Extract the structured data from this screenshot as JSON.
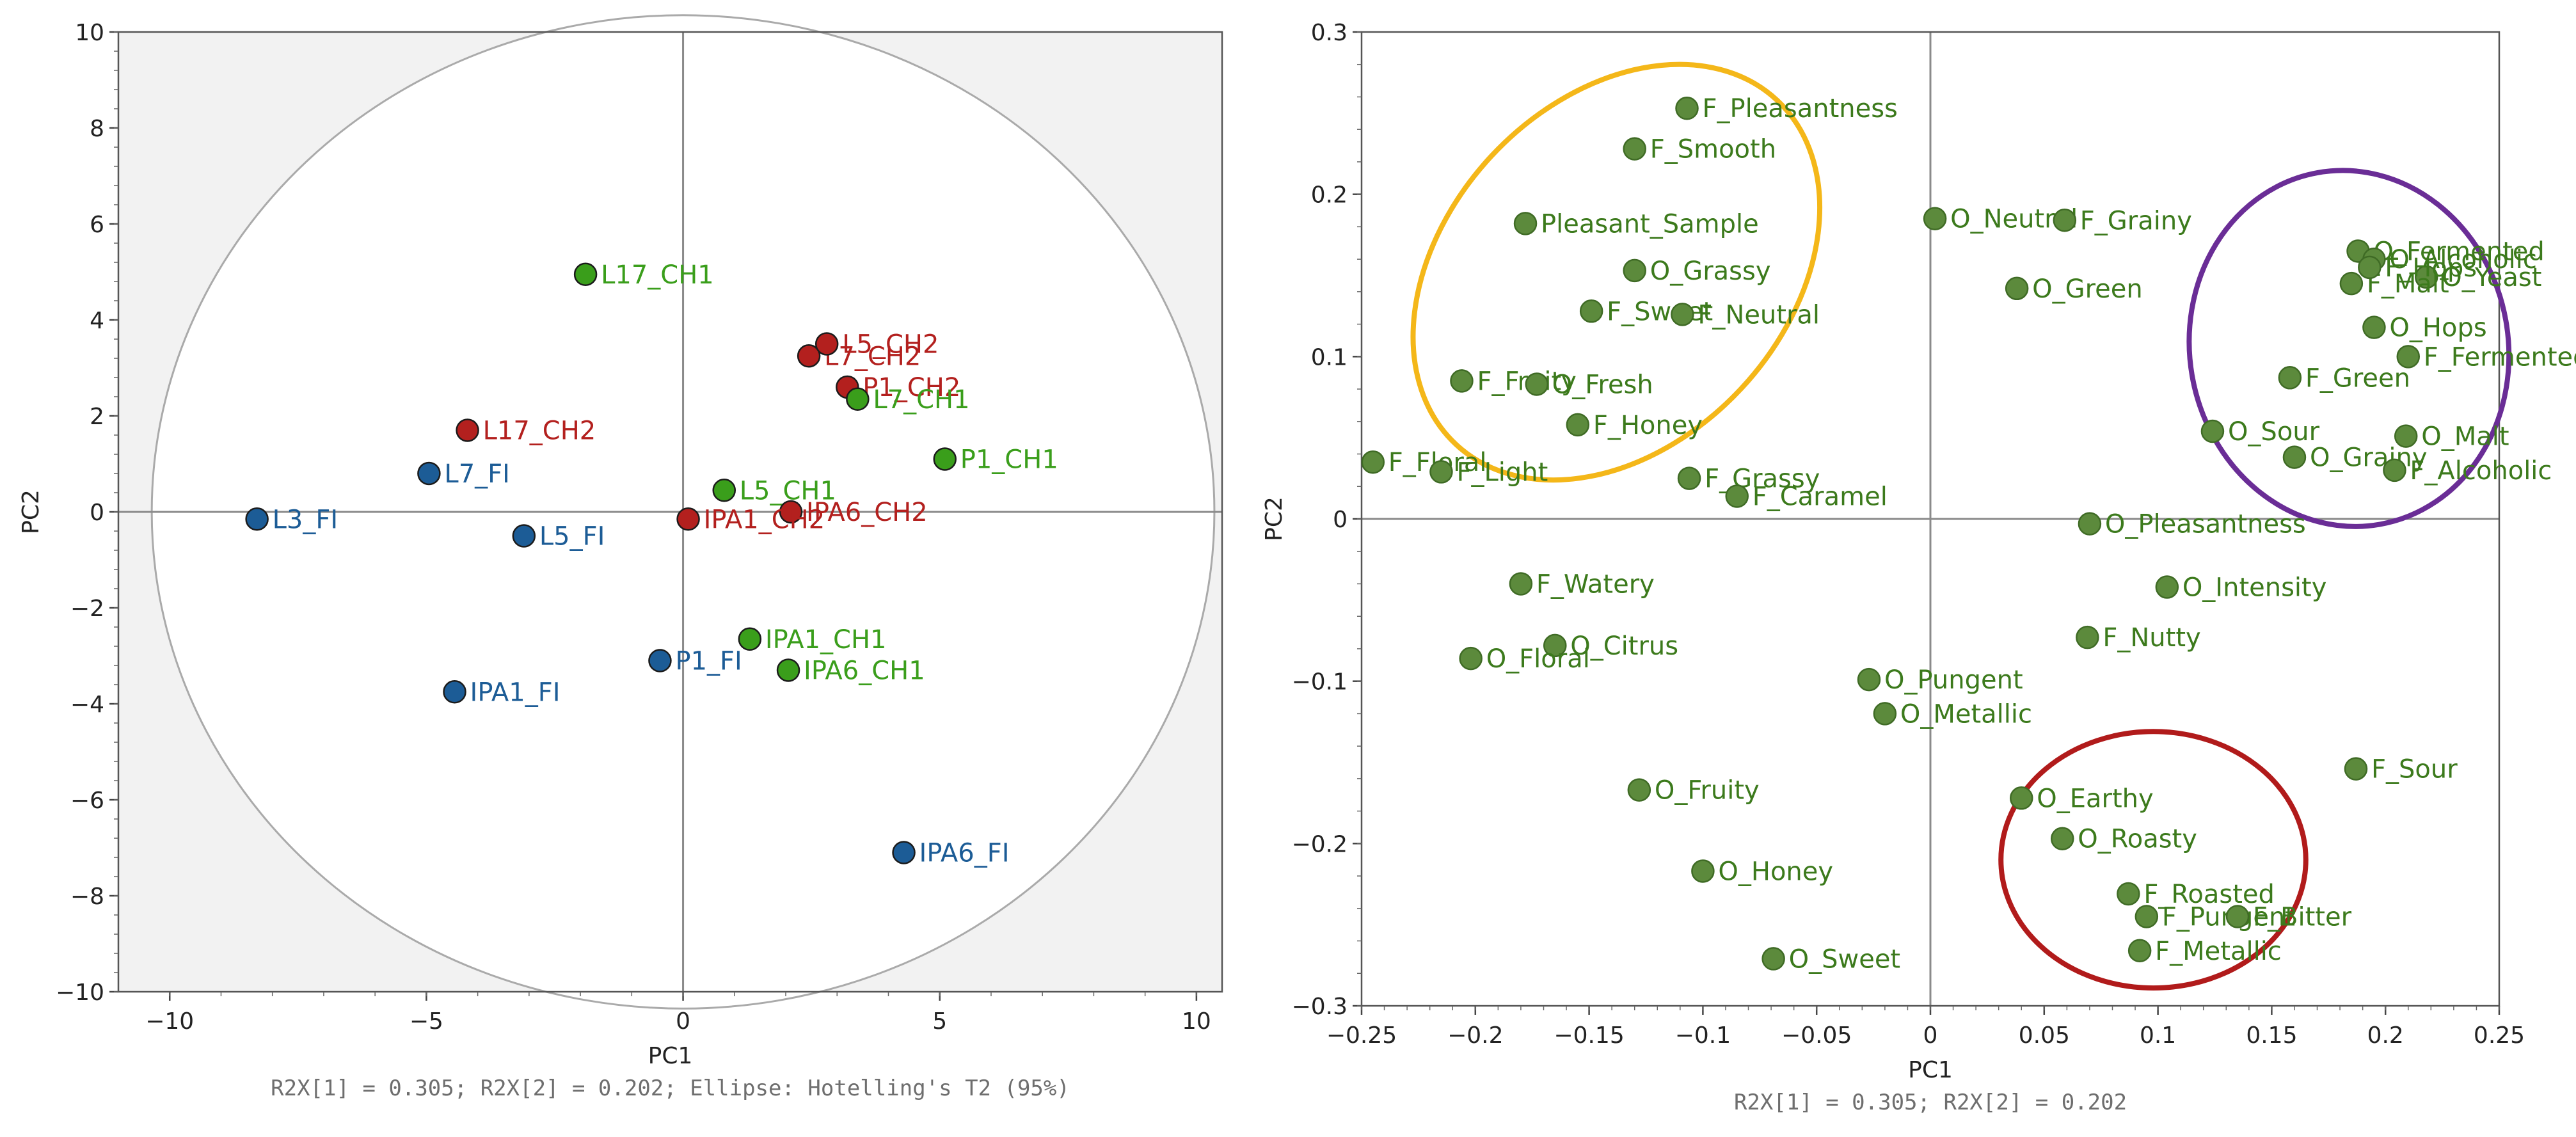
{
  "colors": {
    "chain1": "#3a9e1b",
    "chain2": "#b3201e",
    "fi": "#1c5c96",
    "loadings": "#5c8a3c",
    "loadings_edge": "#3f6b25",
    "loadings_text": "#3c7a1c",
    "ellipse_yellow": "#f4b719",
    "ellipse_purple": "#6a2d96",
    "ellipse_red": "#b11b1b"
  },
  "chart_data": [
    {
      "type": "scatter",
      "xlabel": "PC1",
      "ylabel": "PC2",
      "xlim": [
        -11,
        10.5
      ],
      "ylim": [
        -10,
        10
      ],
      "xticks": [
        -10,
        -5,
        0,
        5,
        10
      ],
      "yticks": [
        -10,
        -8,
        -6,
        -4,
        -2,
        0,
        2,
        4,
        6,
        8,
        10
      ],
      "xtick_labels": [
        "−10",
        "−5",
        "0",
        "5",
        "10"
      ],
      "ytick_labels": [
        "−10",
        "−8",
        "−6",
        "−4",
        "−2",
        "0",
        "2",
        "4",
        "6",
        "8",
        "10"
      ],
      "caption": "R2X[1] = 0.305; R2X[2] = 0.202; Ellipse: Hotelling's T2 (95%)",
      "ellipse": {
        "cx": 0,
        "cy": 0,
        "rx": 10.35,
        "ry": 10.35
      },
      "points": [
        {
          "label": "L17_CH1",
          "x": -1.9,
          "y": 4.95,
          "group": "chain1"
        },
        {
          "label": "L7_CH2",
          "x": 2.45,
          "y": 3.25,
          "group": "chain2"
        },
        {
          "label": "L5_CH2",
          "x": 2.8,
          "y": 3.5,
          "group": "chain2"
        },
        {
          "label": "P1_CH2",
          "x": 3.2,
          "y": 2.6,
          "group": "chain2"
        },
        {
          "label": "L7_CH1",
          "x": 3.4,
          "y": 2.35,
          "group": "chain1"
        },
        {
          "label": "L17_CH2",
          "x": -4.2,
          "y": 1.7,
          "group": "chain2"
        },
        {
          "label": "P1_CH1",
          "x": 5.1,
          "y": 1.1,
          "group": "chain1"
        },
        {
          "label": "L7_FI",
          "x": -4.95,
          "y": 0.8,
          "group": "fi"
        },
        {
          "label": "L5_CH1",
          "x": 0.8,
          "y": 0.45,
          "group": "chain1"
        },
        {
          "label": "L3_FI",
          "x": -8.3,
          "y": -0.15,
          "group": "fi"
        },
        {
          "label": "L5_FI",
          "x": -3.1,
          "y": -0.5,
          "group": "fi"
        },
        {
          "label": "IPA6_CH2",
          "x": 2.1,
          "y": 0.0,
          "group": "chain2"
        },
        {
          "label": "IPA1_CH2",
          "x": 0.1,
          "y": -0.15,
          "group": "chain2"
        },
        {
          "label": "IPA1_CH1",
          "x": 1.3,
          "y": -2.65,
          "group": "chain1"
        },
        {
          "label": "P1_FI",
          "x": -0.45,
          "y": -3.1,
          "group": "fi"
        },
        {
          "label": "IPA6_CH1",
          "x": 2.05,
          "y": -3.3,
          "group": "chain1"
        },
        {
          "label": "IPA1_FI",
          "x": -4.45,
          "y": -3.75,
          "group": "fi"
        },
        {
          "label": "IPA6_FI",
          "x": 4.3,
          "y": -7.1,
          "group": "fi"
        }
      ]
    },
    {
      "type": "scatter",
      "xlabel": "PC1",
      "ylabel": "PC2",
      "xlim": [
        -0.25,
        0.25
      ],
      "ylim": [
        -0.3,
        0.3
      ],
      "xticks": [
        -0.25,
        -0.2,
        -0.15,
        -0.1,
        -0.05,
        0,
        0.05,
        0.1,
        0.15,
        0.2,
        0.25
      ],
      "yticks": [
        -0.3,
        -0.2,
        -0.1,
        0,
        0.1,
        0.2,
        0.3
      ],
      "xtick_labels": [
        "−0.25",
        "−0.2",
        "−0.15",
        "−0.1",
        "−0.05",
        "0",
        "0.05",
        "0.1",
        "0.15",
        "0.2",
        "0.25"
      ],
      "ytick_labels": [
        "−0.3",
        "−0.2",
        "−0.1",
        "0",
        "0.1",
        "0.2",
        "0.3"
      ],
      "caption": "R2X[1] = 0.305; R2X[2] = 0.202",
      "ellipses": [
        {
          "color": "ellipse_yellow",
          "cx": -0.138,
          "cy": 0.152,
          "rx": 0.075,
          "ry": 0.145,
          "rotate": 43
        },
        {
          "color": "ellipse_purple",
          "cx": 0.184,
          "cy": 0.105,
          "rx": 0.07,
          "ry": 0.11,
          "rotate": -10
        },
        {
          "color": "ellipse_red",
          "cx": 0.098,
          "cy": -0.21,
          "rx": 0.067,
          "ry": 0.079,
          "rotate": 0
        }
      ],
      "points": [
        {
          "label": "F_Pleasantness",
          "x": -0.107,
          "y": 0.253
        },
        {
          "label": "F_Smooth",
          "x": -0.13,
          "y": 0.228
        },
        {
          "label": "Pleasant_Sample",
          "x": -0.178,
          "y": 0.182
        },
        {
          "label": "O_Neutral",
          "x": 0.002,
          "y": 0.185
        },
        {
          "label": "F_Grainy",
          "x": 0.059,
          "y": 0.184
        },
        {
          "label": "O_Fermented",
          "x": 0.188,
          "y": 0.165
        },
        {
          "label": "O_Alcoholic",
          "x": 0.195,
          "y": 0.16
        },
        {
          "label": "O_Grassy",
          "x": -0.13,
          "y": 0.153
        },
        {
          "label": "O_Yeast",
          "x": 0.218,
          "y": 0.149
        },
        {
          "label": "F_Malt",
          "x": 0.185,
          "y": 0.145
        },
        {
          "label": "O_Green",
          "x": 0.038,
          "y": 0.142
        },
        {
          "label": "F_Sweet",
          "x": -0.149,
          "y": 0.128
        },
        {
          "label": "F_Neutral",
          "x": -0.109,
          "y": 0.126
        },
        {
          "label": "O_Hops",
          "x": 0.195,
          "y": 0.118
        },
        {
          "label": "F_Hops",
          "x": 0.193,
          "y": 0.155
        },
        {
          "label": "F_Fermented",
          "x": 0.21,
          "y": 0.1
        },
        {
          "label": "F_Green",
          "x": 0.158,
          "y": 0.087
        },
        {
          "label": "F_Fruity",
          "x": -0.206,
          "y": 0.085
        },
        {
          "label": "O_Fresh",
          "x": -0.173,
          "y": 0.083
        },
        {
          "label": "F_Honey",
          "x": -0.155,
          "y": 0.058
        },
        {
          "label": "O_Sour",
          "x": 0.124,
          "y": 0.054
        },
        {
          "label": "O_Malt",
          "x": 0.209,
          "y": 0.051
        },
        {
          "label": "O_Grainy",
          "x": 0.16,
          "y": 0.038
        },
        {
          "label": "F_Floral",
          "x": -0.245,
          "y": 0.035
        },
        {
          "label": "F_Light",
          "x": -0.215,
          "y": 0.029
        },
        {
          "label": "F_Alcoholic",
          "x": 0.204,
          "y": 0.03
        },
        {
          "label": "F_Grassy",
          "x": -0.106,
          "y": 0.025
        },
        {
          "label": "F_Caramel",
          "x": -0.085,
          "y": 0.014
        },
        {
          "label": "O_Pleasantness",
          "x": 0.07,
          "y": -0.003
        },
        {
          "label": "F_Watery",
          "x": -0.18,
          "y": -0.04
        },
        {
          "label": "O_Intensity",
          "x": 0.104,
          "y": -0.042
        },
        {
          "label": "F_Nutty",
          "x": 0.069,
          "y": -0.073
        },
        {
          "label": "O_Citrus",
          "x": -0.165,
          "y": -0.078
        },
        {
          "label": "O_Floral",
          "x": -0.202,
          "y": -0.086
        },
        {
          "label": "O_Pungent",
          "x": -0.027,
          "y": -0.099
        },
        {
          "label": "O_Metallic",
          "x": -0.02,
          "y": -0.12
        },
        {
          "label": "F_Sour",
          "x": 0.187,
          "y": -0.154
        },
        {
          "label": "O_Fruity",
          "x": -0.128,
          "y": -0.167
        },
        {
          "label": "O_Earthy",
          "x": 0.04,
          "y": -0.172
        },
        {
          "label": "O_Roasty",
          "x": 0.058,
          "y": -0.197
        },
        {
          "label": "O_Honey",
          "x": -0.1,
          "y": -0.217
        },
        {
          "label": "F_Roasted",
          "x": 0.087,
          "y": -0.231
        },
        {
          "label": "F_Pungent",
          "x": 0.095,
          "y": -0.245
        },
        {
          "label": "F_Bitter",
          "x": 0.135,
          "y": -0.245
        },
        {
          "label": "F_Metallic",
          "x": 0.092,
          "y": -0.266
        },
        {
          "label": "O_Sweet",
          "x": -0.069,
          "y": -0.271
        }
      ]
    }
  ]
}
